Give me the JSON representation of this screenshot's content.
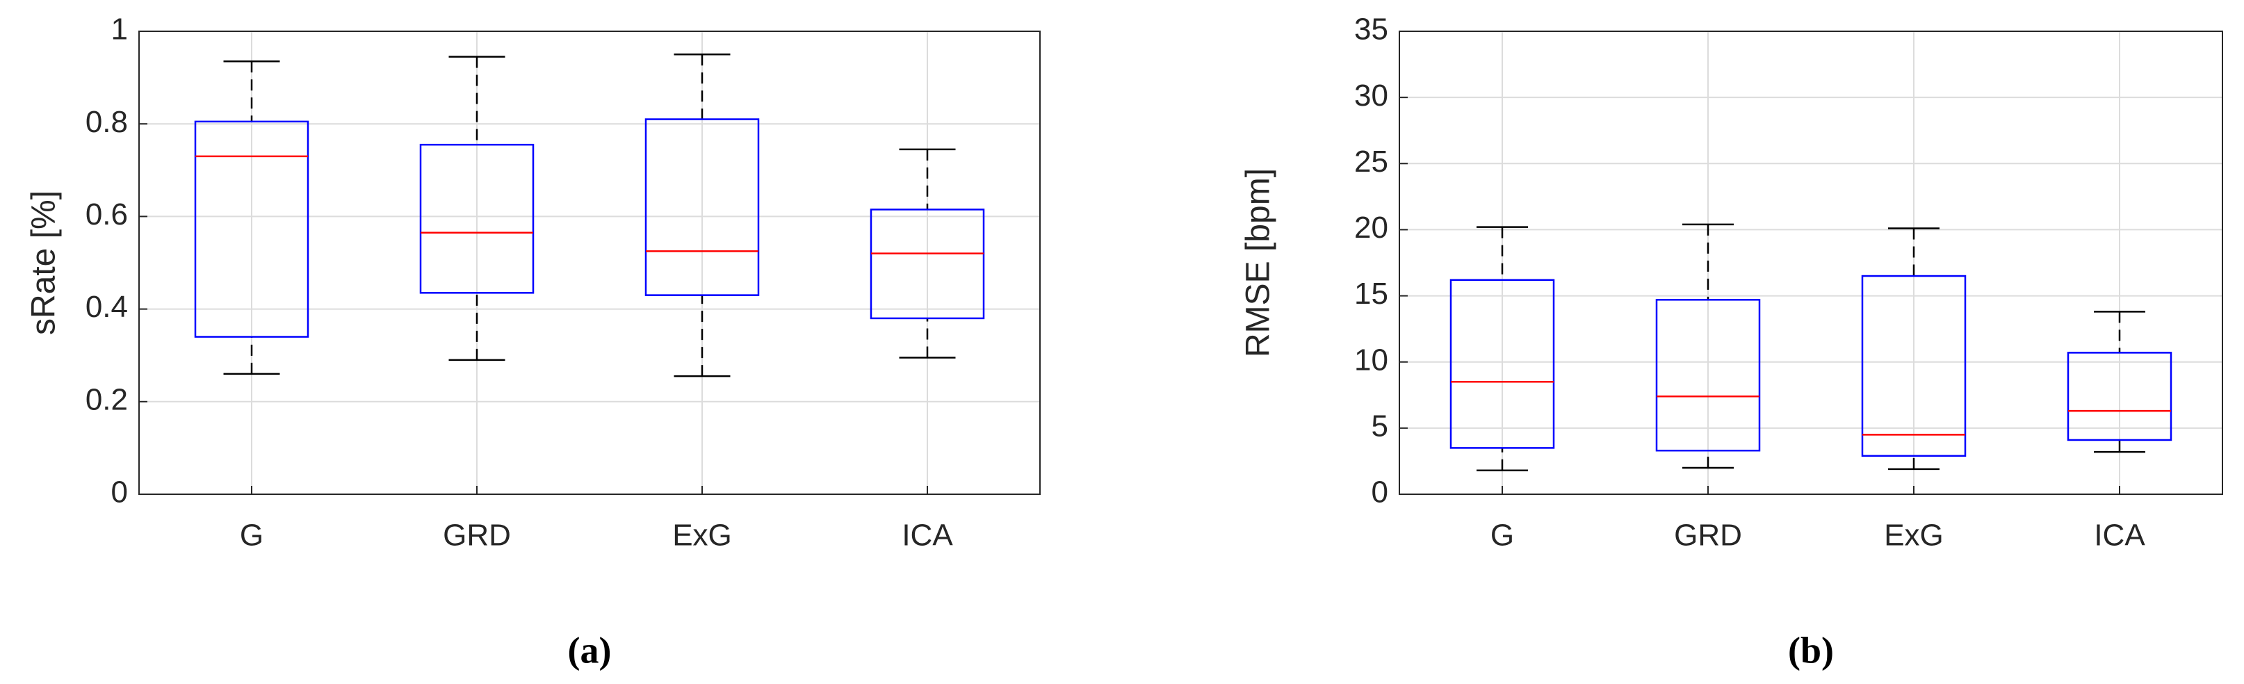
{
  "chart_data": [
    {
      "type": "box",
      "ylabel": "sRate [%]",
      "caption": "(a)",
      "categories": [
        "G",
        "GRD",
        "ExG",
        "ICA"
      ],
      "boxes": [
        {
          "whisker_low": 0.26,
          "q1": 0.34,
          "median": 0.73,
          "q3": 0.805,
          "whisker_high": 0.935
        },
        {
          "whisker_low": 0.29,
          "q1": 0.435,
          "median": 0.565,
          "q3": 0.755,
          "whisker_high": 0.945
        },
        {
          "whisker_low": 0.255,
          "q1": 0.43,
          "median": 0.525,
          "q3": 0.81,
          "whisker_high": 0.95
        },
        {
          "whisker_low": 0.295,
          "q1": 0.38,
          "median": 0.52,
          "q3": 0.615,
          "whisker_high": 0.745
        }
      ],
      "ylim": [
        0,
        1
      ],
      "yticks": [
        0,
        0.2,
        0.4,
        0.6,
        0.8,
        1
      ],
      "grid": true,
      "box_color": "#0000ff",
      "median_color": "#ff0000",
      "whisker_color": "#000000"
    },
    {
      "type": "box",
      "ylabel": "RMSE [bpm]",
      "caption": "(b)",
      "categories": [
        "G",
        "GRD",
        "ExG",
        "ICA"
      ],
      "boxes": [
        {
          "whisker_low": 1.8,
          "q1": 3.5,
          "median": 8.5,
          "q3": 16.2,
          "whisker_high": 20.2
        },
        {
          "whisker_low": 2.0,
          "q1": 3.3,
          "median": 7.4,
          "q3": 14.7,
          "whisker_high": 20.4
        },
        {
          "whisker_low": 1.9,
          "q1": 2.9,
          "median": 4.5,
          "q3": 16.5,
          "whisker_high": 20.1
        },
        {
          "whisker_low": 3.2,
          "q1": 4.1,
          "median": 6.3,
          "q3": 10.7,
          "whisker_high": 13.8
        }
      ],
      "ylim": [
        0,
        35
      ],
      "yticks": [
        0,
        5,
        10,
        15,
        20,
        25,
        30,
        35
      ],
      "grid": true,
      "box_color": "#0000ff",
      "median_color": "#ff0000",
      "whisker_color": "#000000"
    }
  ]
}
